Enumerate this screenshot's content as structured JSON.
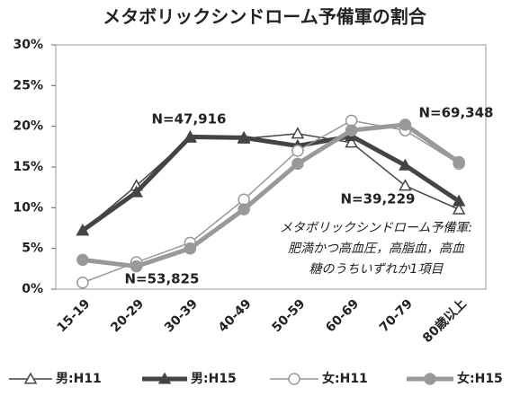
{
  "chart_data": {
    "type": "line",
    "title": "メタボリックシンドローム予備軍の割合",
    "categories": [
      "15-19",
      "20-29",
      "30-39",
      "40-49",
      "50-59",
      "60-69",
      "70-79",
      "80歳以上"
    ],
    "series": [
      {
        "name": "男:H11",
        "color": "#444444",
        "marker": "triangle",
        "filled": false,
        "values": [
          7.2,
          12.7,
          18.6,
          18.5,
          19.1,
          18.0,
          12.7,
          9.8
        ]
      },
      {
        "name": "男:H15",
        "color": "#444444",
        "marker": "triangle",
        "filled": true,
        "values": [
          7.2,
          11.9,
          18.7,
          18.6,
          17.6,
          18.8,
          15.2,
          10.8
        ]
      },
      {
        "name": "女:H11",
        "color": "#999999",
        "marker": "circle",
        "filled": false,
        "values": [
          0.8,
          3.3,
          5.7,
          11.0,
          17.0,
          20.7,
          19.5,
          15.4
        ]
      },
      {
        "name": "女:H15",
        "color": "#999999",
        "marker": "circle",
        "filled": true,
        "values": [
          3.6,
          2.8,
          5.0,
          9.8,
          15.4,
          19.5,
          20.2,
          15.6
        ]
      }
    ],
    "ylim": [
      0,
      30
    ],
    "yticks": [
      {
        "value": 0,
        "label": "0%"
      },
      {
        "value": 5,
        "label": "5%"
      },
      {
        "value": 10,
        "label": "10%"
      },
      {
        "value": 15,
        "label": "15%"
      },
      {
        "value": 20,
        "label": "20%"
      },
      {
        "value": 25,
        "label": "25%"
      },
      {
        "value": 30,
        "label": "30%"
      }
    ],
    "annotations": [
      "N=47,916",
      "N=53,825",
      "N=39,229",
      "N=69,348"
    ],
    "note": [
      "メタボリックシンドローム予備軍:",
      "肥満かつ高血圧，高脂血，高血",
      "糖のうちいずれか1項目"
    ]
  }
}
